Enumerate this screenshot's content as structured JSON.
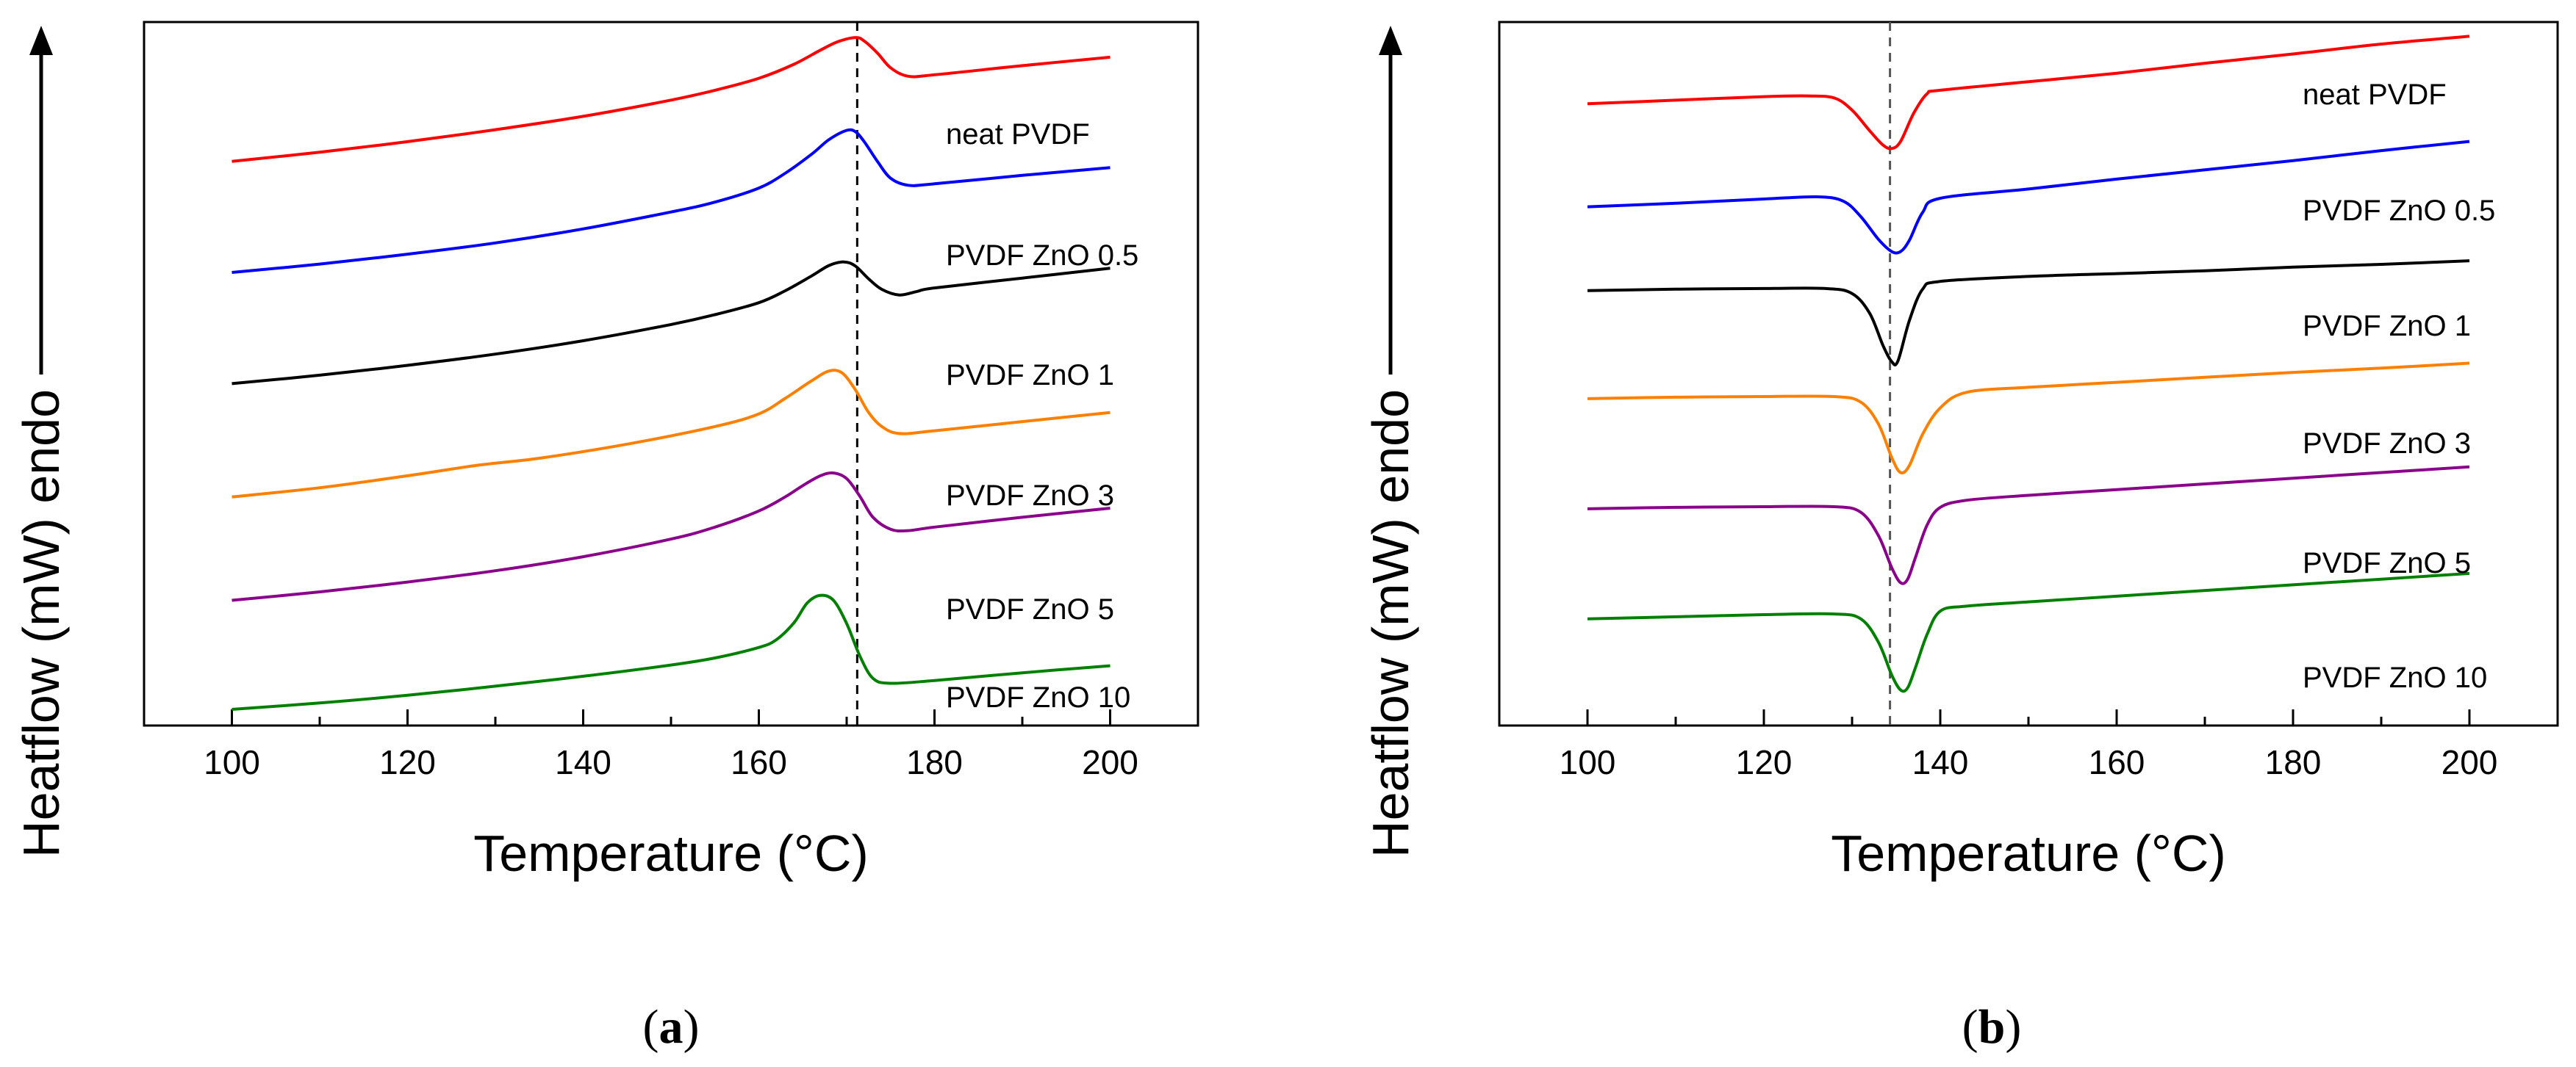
{
  "chart_data": [
    {
      "panel": "a",
      "type": "line",
      "xlabel": "Temperature (°C)",
      "ylabel": "Heatflow (mW) endo",
      "xlim": [
        90,
        210
      ],
      "xticks": [
        100,
        120,
        140,
        160,
        180,
        200
      ],
      "y_ticks_shown": false,
      "reference_line_x": 171.2,
      "series": [
        {
          "name": "neat PVDF",
          "color": "#ff0000",
          "x": [
            100,
            110,
            120,
            130,
            140,
            150,
            155,
            160,
            164,
            167,
            169,
            171,
            172,
            173.5,
            175,
            177,
            180,
            190,
            200
          ],
          "y": [
            26.2,
            27.5,
            29.0,
            30.7,
            32.6,
            34.9,
            36.3,
            38.0,
            40.0,
            42.0,
            43.2,
            43.8,
            43.3,
            41.6,
            39.5,
            38.3,
            38.5,
            39.8,
            41.0
          ]
        },
        {
          "name": "PVDF ZnO 0.5",
          "color": "#0000ff",
          "x": [
            100,
            110,
            120,
            130,
            140,
            150,
            155,
            160,
            163,
            166,
            168,
            170,
            171,
            172,
            173.5,
            175,
            177,
            180,
            190,
            200
          ],
          "y": [
            10.4,
            11.6,
            13.0,
            14.6,
            16.6,
            19.0,
            20.4,
            22.4,
            24.5,
            27.2,
            29.3,
            30.6,
            30.4,
            29.0,
            26.2,
            23.8,
            22.8,
            23.0,
            24.2,
            25.3
          ]
        },
        {
          "name": "PVDF ZnO 1",
          "color": "#000000",
          "x": [
            100,
            110,
            120,
            130,
            140,
            150,
            155,
            160,
            163,
            166,
            168,
            169.7,
            171,
            172.5,
            174,
            176,
            178,
            180,
            190,
            200
          ],
          "y": [
            -5.4,
            -4.2,
            -2.8,
            -1.2,
            0.7,
            3.0,
            4.4,
            6.1,
            7.8,
            9.9,
            11.4,
            11.9,
            11.3,
            9.5,
            8.0,
            7.2,
            7.7,
            8.2,
            9.6,
            11.0
          ]
        },
        {
          "name": "PVDF ZnO 3",
          "color": "#ff8000",
          "x": [
            100,
            110,
            120,
            128,
            135,
            145,
            155,
            160,
            163,
            166,
            168,
            169.5,
            171,
            172.5,
            174,
            176,
            180,
            190,
            200
          ],
          "y": [
            -21.5,
            -20.2,
            -18.5,
            -17.0,
            -16.0,
            -14.0,
            -11.5,
            -9.7,
            -7.5,
            -5.0,
            -3.6,
            -3.9,
            -6.3,
            -9.5,
            -11.5,
            -12.5,
            -12.1,
            -10.8,
            -9.5
          ]
        },
        {
          "name": "PVDF ZnO 5",
          "color": "#8b008b",
          "x": [
            100,
            110,
            120,
            130,
            140,
            150,
            155,
            160,
            163,
            165,
            167,
            168.5,
            170,
            171.5,
            173,
            175,
            177,
            180,
            190,
            200
          ],
          "y": [
            -36.2,
            -35.0,
            -33.6,
            -32.0,
            -30.0,
            -27.5,
            -25.8,
            -23.5,
            -21.5,
            -19.9,
            -18.5,
            -18.1,
            -18.9,
            -21.4,
            -24.4,
            -26.1,
            -26.3,
            -25.8,
            -24.4,
            -23.1
          ]
        },
        {
          "name": "PVDF ZnO 10",
          "color": "#008000",
          "x": [
            100,
            110,
            120,
            130,
            140,
            150,
            155,
            160,
            162,
            164,
            165.5,
            167,
            168.5,
            170,
            171.5,
            173,
            175,
            180,
            190,
            200
          ],
          "y": [
            -51.7,
            -50.8,
            -49.7,
            -48.4,
            -47.0,
            -45.4,
            -44.4,
            -42.9,
            -41.8,
            -39.4,
            -36.6,
            -35.5,
            -36.2,
            -39.5,
            -44.1,
            -47.3,
            -48.0,
            -47.6,
            -46.5,
            -45.5
          ]
        }
      ],
      "annotations": [
        "neat PVDF",
        "PVDF ZnO 0.5",
        "PVDF ZnO 1",
        "PVDF ZnO 3",
        "PVDF ZnO 5",
        "PVDF ZnO 10"
      ],
      "caption": "(a)"
    },
    {
      "panel": "b",
      "type": "line",
      "xlabel": "Temperature (°C)",
      "ylabel": "Heatflow (mW) endo",
      "xlim": [
        90,
        210
      ],
      "xticks": [
        100,
        120,
        140,
        160,
        180,
        200
      ],
      "y_ticks_shown": false,
      "reference_line_x": 134.3,
      "series": [
        {
          "name": "neat PVDF",
          "color": "#ff0000",
          "x": [
            100,
            110,
            120,
            125,
            128,
            130,
            132,
            133.5,
            134.5,
            135.5,
            137,
            138.5,
            140,
            150,
            160,
            170,
            180,
            190,
            200
          ],
          "y": [
            41.5,
            42.0,
            42.5,
            42.6,
            42.3,
            40.6,
            37.7,
            35.7,
            35.2,
            36.2,
            40.2,
            42.9,
            43.4,
            44.6,
            45.8,
            47.2,
            48.5,
            49.9,
            51.0
          ]
        },
        {
          "name": "PVDF ZnO 0.5",
          "color": "#0000ff",
          "x": [
            100,
            110,
            120,
            126,
            129,
            131,
            133,
            134.5,
            135.5,
            136.5,
            138,
            140,
            150,
            160,
            170,
            180,
            190,
            200
          ],
          "y": [
            27.0,
            27.5,
            28.1,
            28.4,
            27.8,
            25.6,
            22.4,
            20.7,
            20.7,
            22.3,
            26.2,
            28.2,
            29.5,
            30.9,
            32.2,
            33.5,
            34.9,
            36.2
          ]
        },
        {
          "name": "PVDF ZnO 1",
          "color": "#000000",
          "x": [
            100,
            110,
            120,
            127,
            130,
            132,
            133.5,
            134.5,
            135.2,
            136.5,
            138,
            140,
            150,
            160,
            170,
            180,
            190,
            200
          ],
          "y": [
            15.2,
            15.4,
            15.5,
            15.5,
            14.8,
            12.0,
            7.5,
            5.2,
            5.3,
            11.0,
            15.4,
            16.5,
            17.2,
            17.6,
            18.0,
            18.5,
            18.9,
            19.4
          ]
        },
        {
          "name": "PVDF ZnO 3",
          "color": "#ff8000",
          "x": [
            100,
            110,
            120,
            128,
            131,
            133,
            134.5,
            135.5,
            136.5,
            138,
            140,
            143,
            150,
            160,
            170,
            180,
            190,
            200
          ],
          "y": [
            0.0,
            0.2,
            0.3,
            0.3,
            -0.5,
            -3.6,
            -8.3,
            -10.4,
            -9.4,
            -5.0,
            -1.3,
            0.9,
            1.6,
            2.3,
            3.0,
            3.7,
            4.3,
            5.0
          ]
        },
        {
          "name": "PVDF ZnO 5",
          "color": "#8b008b",
          "x": [
            100,
            110,
            120,
            128,
            131,
            133,
            134.5,
            135.5,
            136.3,
            137.2,
            138.5,
            140,
            143,
            150,
            160,
            170,
            180,
            190,
            200
          ],
          "y": [
            -15.5,
            -15.3,
            -15.2,
            -15.2,
            -16.0,
            -19.3,
            -23.8,
            -25.9,
            -25.4,
            -22.3,
            -17.8,
            -15.3,
            -14.3,
            -13.6,
            -12.8,
            -12.0,
            -11.2,
            -10.4,
            -9.6
          ]
        },
        {
          "name": "PVDF ZnO 10",
          "color": "#008000",
          "x": [
            100,
            110,
            120,
            128,
            131,
            133,
            134.5,
            135.5,
            136.3,
            137.2,
            138.5,
            140,
            143,
            150,
            160,
            170,
            180,
            190,
            200
          ],
          "y": [
            -31.0,
            -30.7,
            -30.4,
            -30.3,
            -31.0,
            -34.3,
            -38.9,
            -41.0,
            -40.7,
            -37.8,
            -33.2,
            -29.9,
            -29.2,
            -28.6,
            -27.8,
            -27.0,
            -26.2,
            -25.4,
            -24.6
          ]
        }
      ],
      "annotations": [
        "neat PVDF",
        "PVDF ZnO 0.5",
        "PVDF ZnO 1",
        "PVDF ZnO 3",
        "PVDF ZnO 5",
        "PVDF ZnO 10"
      ],
      "caption": "(b)"
    }
  ]
}
